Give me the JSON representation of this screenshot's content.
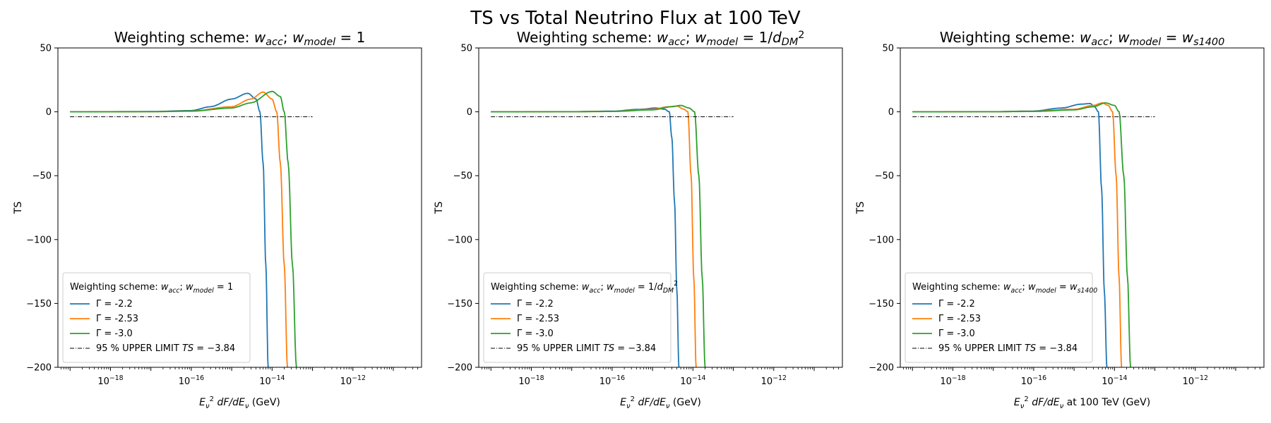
{
  "figure": {
    "title": "TS vs Total Neutrino Flux at 100 TeV"
  },
  "colors": {
    "gamma_2_2": "#1f77b4",
    "gamma_2_53": "#ff7f0e",
    "gamma_3_0": "#2ca02c",
    "limit_line": "#000000"
  },
  "chart_data": [
    {
      "type": "line",
      "title": "Weighting scheme: w_acc; w_model = 1",
      "xlabel": "E_ν² dF/dE_ν (GeV)",
      "ylabel": "TS",
      "xscale": "log",
      "xlim": [
        5e-20,
        5e-11
      ],
      "ylim": [
        -200,
        50
      ],
      "yticks": [
        50,
        0,
        -50,
        -100,
        -150,
        -200
      ],
      "xticks": [
        "10^-18",
        "10^-16",
        "10^-14",
        "10^-12"
      ],
      "grid": false,
      "legend": {
        "placement": "lower-left",
        "title": "Weighting scheme: w_acc; w_model = 1",
        "entries": [
          "Γ = -2.2",
          "Γ = -2.53",
          "Γ = -3.0",
          "95 % UPPER LIMIT TS = −3.84"
        ]
      },
      "series": [
        {
          "name": "Γ = -2.2",
          "x": [
            1e-19,
            1e-17,
            1e-16,
            3e-16,
            1e-15,
            2.5e-15,
            4e-15,
            5e-15,
            6e-15,
            7e-15,
            8e-15
          ],
          "y": [
            0,
            0.2,
            1,
            4,
            10,
            14.5,
            10,
            0,
            -40,
            -120,
            -200
          ]
        },
        {
          "name": "Γ = -2.53",
          "x": [
            1e-19,
            1e-17,
            1e-16,
            1e-15,
            3e-15,
            6e-15,
            1e-14,
            1.3e-14,
            1.6e-14,
            2e-14,
            2.4e-14
          ],
          "y": [
            0,
            0.1,
            0.6,
            4,
            10,
            15.5,
            10,
            0,
            -40,
            -120,
            -200
          ]
        },
        {
          "name": "Γ = -3.0",
          "x": [
            1e-19,
            1e-17,
            1e-16,
            1e-15,
            3e-15,
            1e-14,
            1.6e-14,
            2e-14,
            2.5e-14,
            3.2e-14,
            4e-14
          ],
          "y": [
            0,
            0.1,
            0.5,
            3,
            7,
            16,
            12,
            0,
            -40,
            -120,
            -200
          ]
        },
        {
          "name": "95 % UPPER LIMIT TS = −3.84",
          "x": [
            1e-19,
            1e-13
          ],
          "y": [
            -3.84,
            -3.84
          ],
          "style": "dashdot"
        }
      ]
    },
    {
      "type": "line",
      "title": "Weighting scheme: w_acc; w_model = 1/d_DM²",
      "xlabel": "E_ν² dF/dE_ν (GeV)",
      "ylabel": "TS",
      "xscale": "log",
      "xlim": [
        5e-20,
        5e-11
      ],
      "ylim": [
        -200,
        50
      ],
      "yticks": [
        50,
        0,
        -50,
        -100,
        -150,
        -200
      ],
      "xticks": [
        "10^-18",
        "10^-16",
        "10^-14",
        "10^-12"
      ],
      "grid": false,
      "legend": {
        "placement": "lower-left",
        "title": "Weighting scheme: w_acc; w_model = 1/d_DM²",
        "entries": [
          "Γ = -2.2",
          "Γ = -2.53",
          "Γ = -3.0",
          "95 % UPPER LIMIT TS = −3.84"
        ]
      },
      "series": [
        {
          "name": "Γ = -2.2",
          "x": [
            1e-19,
            1e-17,
            1e-16,
            5e-16,
            1.2e-15,
            2e-15,
            2.6e-15,
            3e-15,
            3.5e-15,
            4e-15,
            4.5e-15
          ],
          "y": [
            0,
            0.1,
            0.5,
            2,
            3,
            2,
            0,
            -20,
            -70,
            -140,
            -200
          ]
        },
        {
          "name": "Γ = -2.53",
          "x": [
            1e-19,
            1e-17,
            1e-16,
            1e-15,
            2.5e-15,
            4e-15,
            6e-15,
            7.5e-15,
            9e-15,
            1.05e-14,
            1.2e-14
          ],
          "y": [
            0,
            0.1,
            0.3,
            2,
            4,
            4.5,
            2,
            0,
            -50,
            -130,
            -200
          ]
        },
        {
          "name": "Γ = -3.0",
          "x": [
            1e-19,
            1e-17,
            1e-16,
            1e-15,
            3e-15,
            5e-15,
            8e-15,
            1.1e-14,
            1.4e-14,
            1.7e-14,
            2e-14
          ],
          "y": [
            0,
            0.1,
            0.3,
            1.5,
            4,
            5,
            3,
            0,
            -50,
            -130,
            -200
          ]
        },
        {
          "name": "95 % UPPER LIMIT TS = −3.84",
          "x": [
            1e-19,
            1e-13
          ],
          "y": [
            -3.84,
            -3.84
          ],
          "style": "dashdot"
        }
      ]
    },
    {
      "type": "line",
      "title": "Weighting scheme: w_acc; w_model = w_s1400",
      "xlabel": "E_ν² dF/dE_ν at 100 TeV (GeV)",
      "ylabel": "TS",
      "xscale": "log",
      "xlim": [
        5e-20,
        5e-11
      ],
      "ylim": [
        -200,
        50
      ],
      "yticks": [
        50,
        0,
        -50,
        -100,
        -150,
        -200
      ],
      "xticks": [
        "10^-18",
        "10^-16",
        "10^-14",
        "10^-12"
      ],
      "grid": false,
      "legend": {
        "placement": "lower-left",
        "title": "Weighting scheme: w_acc; w_model = w_s1400",
        "entries": [
          "Γ = -2.2",
          "Γ = -2.53",
          "Γ = -3.0",
          "95 % UPPER LIMIT TS = −3.84"
        ]
      },
      "series": [
        {
          "name": "Γ = -2.2",
          "x": [
            1e-19,
            1e-17,
            1e-16,
            5e-16,
            1.5e-15,
            2.5e-15,
            3.2e-15,
            4e-15,
            4.8e-15,
            5.6e-15,
            6.5e-15
          ],
          "y": [
            0,
            0.1,
            0.6,
            3,
            6,
            6.5,
            4,
            0,
            -60,
            -140,
            -200
          ]
        },
        {
          "name": "Γ = -2.53",
          "x": [
            1e-19,
            1e-17,
            1e-16,
            1e-15,
            3e-15,
            5e-15,
            7e-15,
            9e-15,
            1.1e-14,
            1.3e-14,
            1.5e-14
          ],
          "y": [
            0,
            0.1,
            0.4,
            2,
            5,
            7,
            5,
            0,
            -50,
            -130,
            -200
          ]
        },
        {
          "name": "Γ = -3.0",
          "x": [
            1e-19,
            1e-17,
            1e-16,
            1e-15,
            3e-15,
            6e-15,
            1e-14,
            1.3e-14,
            1.7e-14,
            2.1e-14,
            2.5e-14
          ],
          "y": [
            0,
            0.1,
            0.3,
            1.5,
            4,
            7,
            5,
            0,
            -50,
            -130,
            -200
          ]
        },
        {
          "name": "95 % UPPER LIMIT TS = −3.84",
          "x": [
            1e-19,
            1e-13
          ],
          "y": [
            -3.84,
            -3.84
          ],
          "style": "dashdot"
        }
      ]
    }
  ]
}
